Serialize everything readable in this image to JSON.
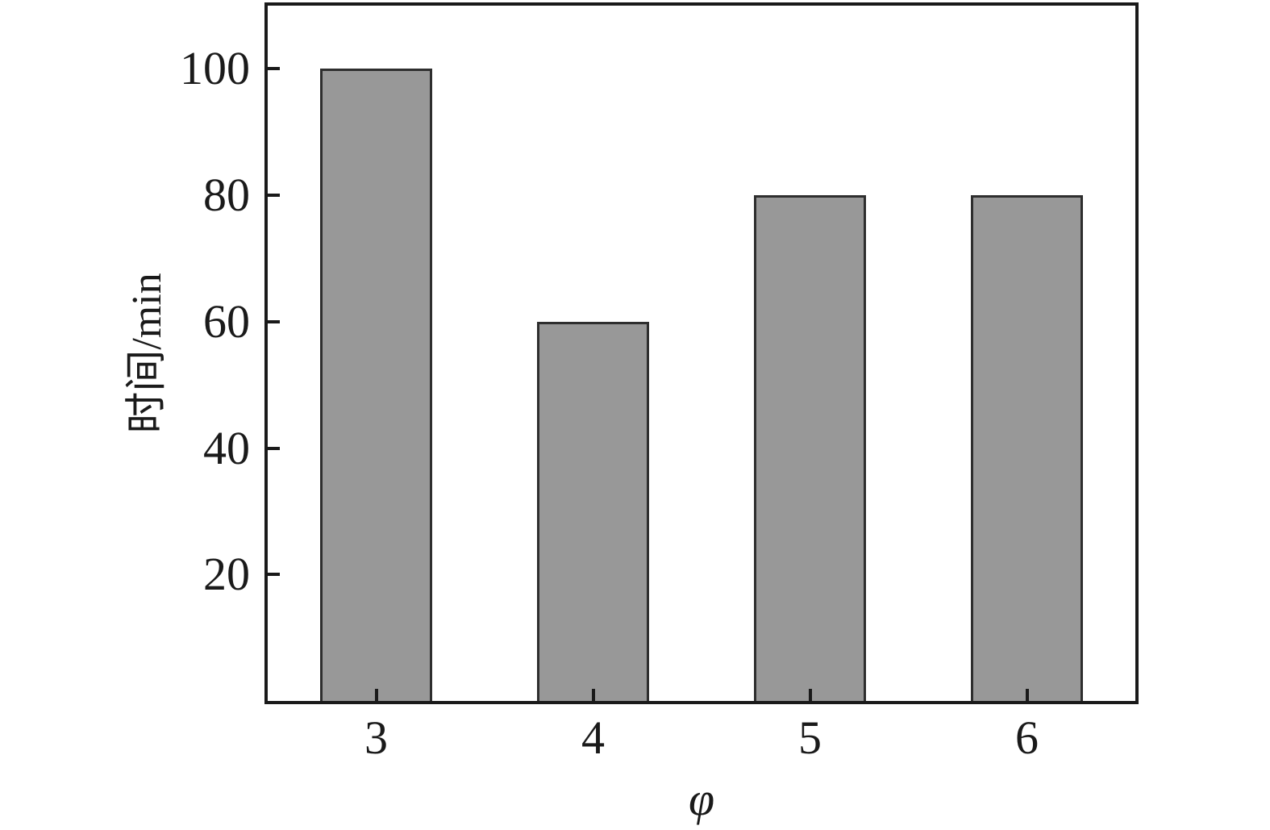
{
  "chart_data": {
    "type": "bar",
    "categories": [
      "3",
      "4",
      "5",
      "6"
    ],
    "values": [
      100,
      60,
      80,
      80
    ],
    "title": "",
    "xlabel": "φ",
    "ylabel": "时间/min",
    "ylim": [
      0,
      110
    ],
    "yticks": [
      20,
      40,
      60,
      80,
      100
    ],
    "grid": false,
    "legend": "none",
    "bar_fill_color": "#989898",
    "bar_border_color": "#2e2e2e",
    "axis_color": "#1a1a1a",
    "background_color": "#ffffff",
    "bar_width_fraction": 0.515,
    "tick_direction": "in"
  }
}
